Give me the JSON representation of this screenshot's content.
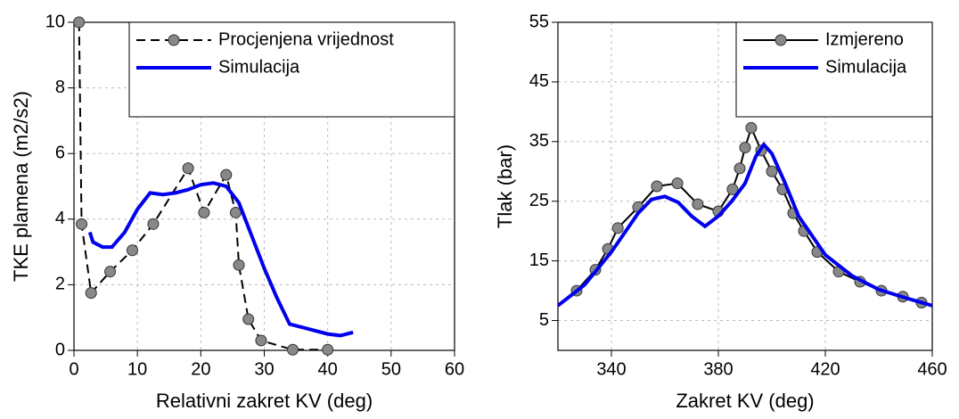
{
  "chart_data": [
    {
      "type": "line",
      "x_label": "Relativni zakret KV (deg)",
      "y_label": "TKE plamena (m2/s2)",
      "xlim": [
        0,
        60
      ],
      "xticks": [
        0,
        10,
        20,
        30,
        40,
        50,
        60
      ],
      "ylim": [
        0,
        10
      ],
      "yticks": [
        0,
        2,
        4,
        6,
        8,
        10
      ],
      "grid": true,
      "legend": "upper right",
      "series": [
        {
          "name": "Procjenjena vrijednost",
          "color": "#000000",
          "dashed": true,
          "markers": true,
          "x": [
            0.8,
            1.2,
            2.7,
            5.7,
            9.2,
            12.5,
            18,
            20.5,
            24,
            25.5,
            26,
            27.5,
            29.5,
            34.5,
            40
          ],
          "values": [
            10,
            3.85,
            1.75,
            2.4,
            3.05,
            3.85,
            5.55,
            4.2,
            5.35,
            4.2,
            2.6,
            0.95,
            0.3,
            0.02,
            0.02
          ]
        },
        {
          "name": "Simulacija",
          "color": "#0000ee",
          "dashed": false,
          "markers": false,
          "x": [
            2.5,
            3,
            4.5,
            6,
            8,
            10,
            12,
            14,
            16,
            18,
            20,
            22,
            24,
            26,
            28,
            30,
            32,
            34,
            36,
            38,
            40,
            42,
            44
          ],
          "values": [
            3.6,
            3.3,
            3.15,
            3.15,
            3.6,
            4.3,
            4.8,
            4.75,
            4.8,
            4.9,
            5.05,
            5.1,
            5.0,
            4.5,
            3.5,
            2.5,
            1.6,
            0.8,
            0.7,
            0.6,
            0.5,
            0.45,
            0.55
          ]
        }
      ]
    },
    {
      "type": "line",
      "x_label": "Zakret KV (deg)",
      "y_label": "Tlak (bar)",
      "xlim": [
        320,
        460
      ],
      "xticks": [
        340,
        380,
        420,
        460
      ],
      "ylim": [
        0,
        55
      ],
      "yticks": [
        5,
        15,
        25,
        35,
        45,
        55
      ],
      "grid": true,
      "legend": "upper right",
      "series": [
        {
          "name": "Izmjereno",
          "color": "#000000",
          "dashed": false,
          "markers": true,
          "x": [
            327,
            334,
            338.7,
            342.4,
            350,
            357,
            364.7,
            372.3,
            380,
            385.3,
            388,
            390,
            392.3,
            396,
            400,
            404,
            408,
            412,
            417,
            425,
            433,
            441,
            449,
            456
          ],
          "values": [
            10,
            13.5,
            17,
            20.5,
            24,
            27.5,
            28,
            24.5,
            23.3,
            27,
            30.5,
            34,
            37.3,
            33.5,
            30,
            27,
            23,
            20,
            16.5,
            13.2,
            11.5,
            10,
            9,
            8
          ]
        },
        {
          "name": "Simulacija",
          "color": "#0000ee",
          "dashed": false,
          "markers": false,
          "x": [
            320,
            330,
            340,
            350,
            355,
            360,
            365,
            370,
            375,
            380,
            385,
            390,
            394,
            397,
            400,
            405,
            410,
            420,
            430,
            440,
            450,
            460
          ],
          "values": [
            7.5,
            11,
            16.5,
            23,
            25.3,
            25.8,
            24.8,
            22.5,
            20.8,
            22.5,
            25,
            28,
            32.5,
            34.5,
            33,
            28,
            22.5,
            16,
            12.5,
            10.2,
            8.8,
            7.5
          ]
        }
      ]
    }
  ]
}
